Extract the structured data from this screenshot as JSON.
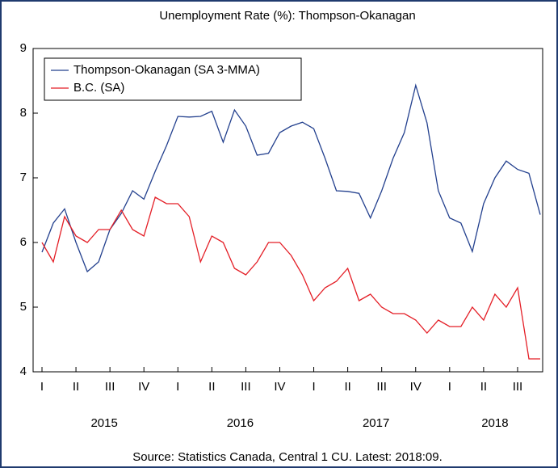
{
  "chart_data": {
    "type": "line",
    "title": "Unemployment Rate (%): Thompson-Okanagan",
    "source": "Source: Statistics Canada, Central 1 CU. Latest: 2018:09.",
    "categories": [
      "I",
      null,
      null,
      "II",
      null,
      null,
      "III",
      null,
      null,
      "IV",
      null,
      null,
      "I",
      null,
      null,
      "II",
      null,
      null,
      "III",
      null,
      null,
      "IV",
      null,
      null,
      "I",
      null,
      null,
      "II",
      null,
      null,
      "III",
      null,
      null,
      "IV",
      null,
      null,
      "I",
      null,
      null,
      "II",
      null,
      null,
      "III",
      null,
      null
    ],
    "year_labels": [
      "2015",
      "2016",
      "2017",
      "2018"
    ],
    "series": [
      {
        "name": "Thompson-Okanagan (SA 3-MMA)",
        "color": "#23408e",
        "values": [
          5.85,
          6.3,
          6.52,
          6.0,
          5.55,
          5.7,
          6.2,
          6.45,
          6.8,
          6.67,
          7.1,
          7.5,
          7.95,
          7.94,
          7.95,
          8.03,
          7.55,
          8.05,
          7.8,
          7.35,
          7.38,
          7.7,
          7.8,
          7.86,
          7.76,
          7.3,
          6.8,
          6.79,
          6.76,
          6.38,
          6.8,
          7.3,
          7.7,
          8.43,
          7.85,
          6.8,
          6.38,
          6.3,
          5.86,
          6.6,
          7.0,
          7.26,
          7.13,
          7.07,
          6.43
        ]
      },
      {
        "name": "B.C. (SA)",
        "color": "#e41e26",
        "values": [
          6.0,
          5.7,
          6.4,
          6.1,
          6.0,
          6.2,
          6.2,
          6.5,
          6.2,
          6.1,
          6.7,
          6.6,
          6.6,
          6.4,
          5.7,
          6.1,
          6.0,
          5.6,
          5.5,
          5.7,
          6.0,
          6.0,
          5.8,
          5.5,
          5.1,
          5.3,
          5.4,
          5.6,
          5.1,
          5.2,
          5.0,
          4.9,
          4.9,
          4.8,
          4.6,
          4.8,
          4.7,
          4.7,
          5.0,
          4.8,
          5.2,
          5.0,
          5.3,
          4.2,
          4.2
        ]
      }
    ],
    "ylim": [
      4,
      9
    ],
    "yticks": [
      4,
      5,
      6,
      7,
      8,
      9
    ],
    "legend": "upper left"
  }
}
